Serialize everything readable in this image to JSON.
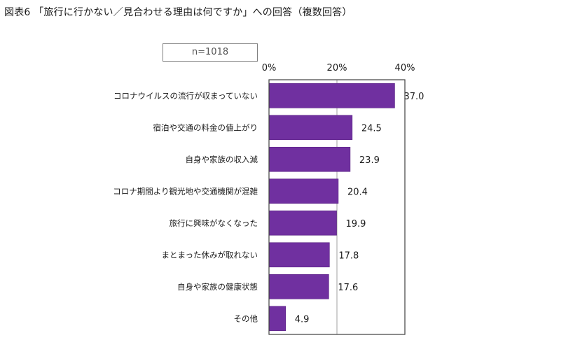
{
  "title": "図表6 「旅行に行かない／見合わせる理由は何ですか」への回答（複数回答）",
  "sample_label": "n=1018",
  "colors": {
    "bar": "#7030a0",
    "bar_edge": "#5a2384",
    "axis": "#404040",
    "grid": "#a0a0a0"
  },
  "chart_data": {
    "type": "bar",
    "orientation": "horizontal",
    "title": "図表6 「旅行に行かない／見合わせる理由は何ですか」への回答（複数回答）",
    "categories": [
      "コロナウイルスの流行が収まっていない",
      "宿泊や交通の料金の値上がり",
      "自身や家族の収入減",
      "コロナ期間より観光地や交通機関が混雑",
      "旅行に興味がなくなった",
      "まとまった休みが取れない",
      "自身や家族の健康状態",
      "その他"
    ],
    "values": [
      37.0,
      24.5,
      23.9,
      20.4,
      19.9,
      17.8,
      17.6,
      4.9
    ],
    "value_labels": [
      "37.0",
      "24.5",
      "23.9",
      "20.4",
      "19.9",
      "17.8",
      "17.6",
      "4.9"
    ],
    "xlim": [
      0,
      40
    ],
    "ticks": [
      0,
      20,
      40
    ],
    "tick_labels": [
      "0%",
      "20%",
      "40%"
    ],
    "tick_position": "top",
    "grid": true,
    "legend": "none"
  }
}
